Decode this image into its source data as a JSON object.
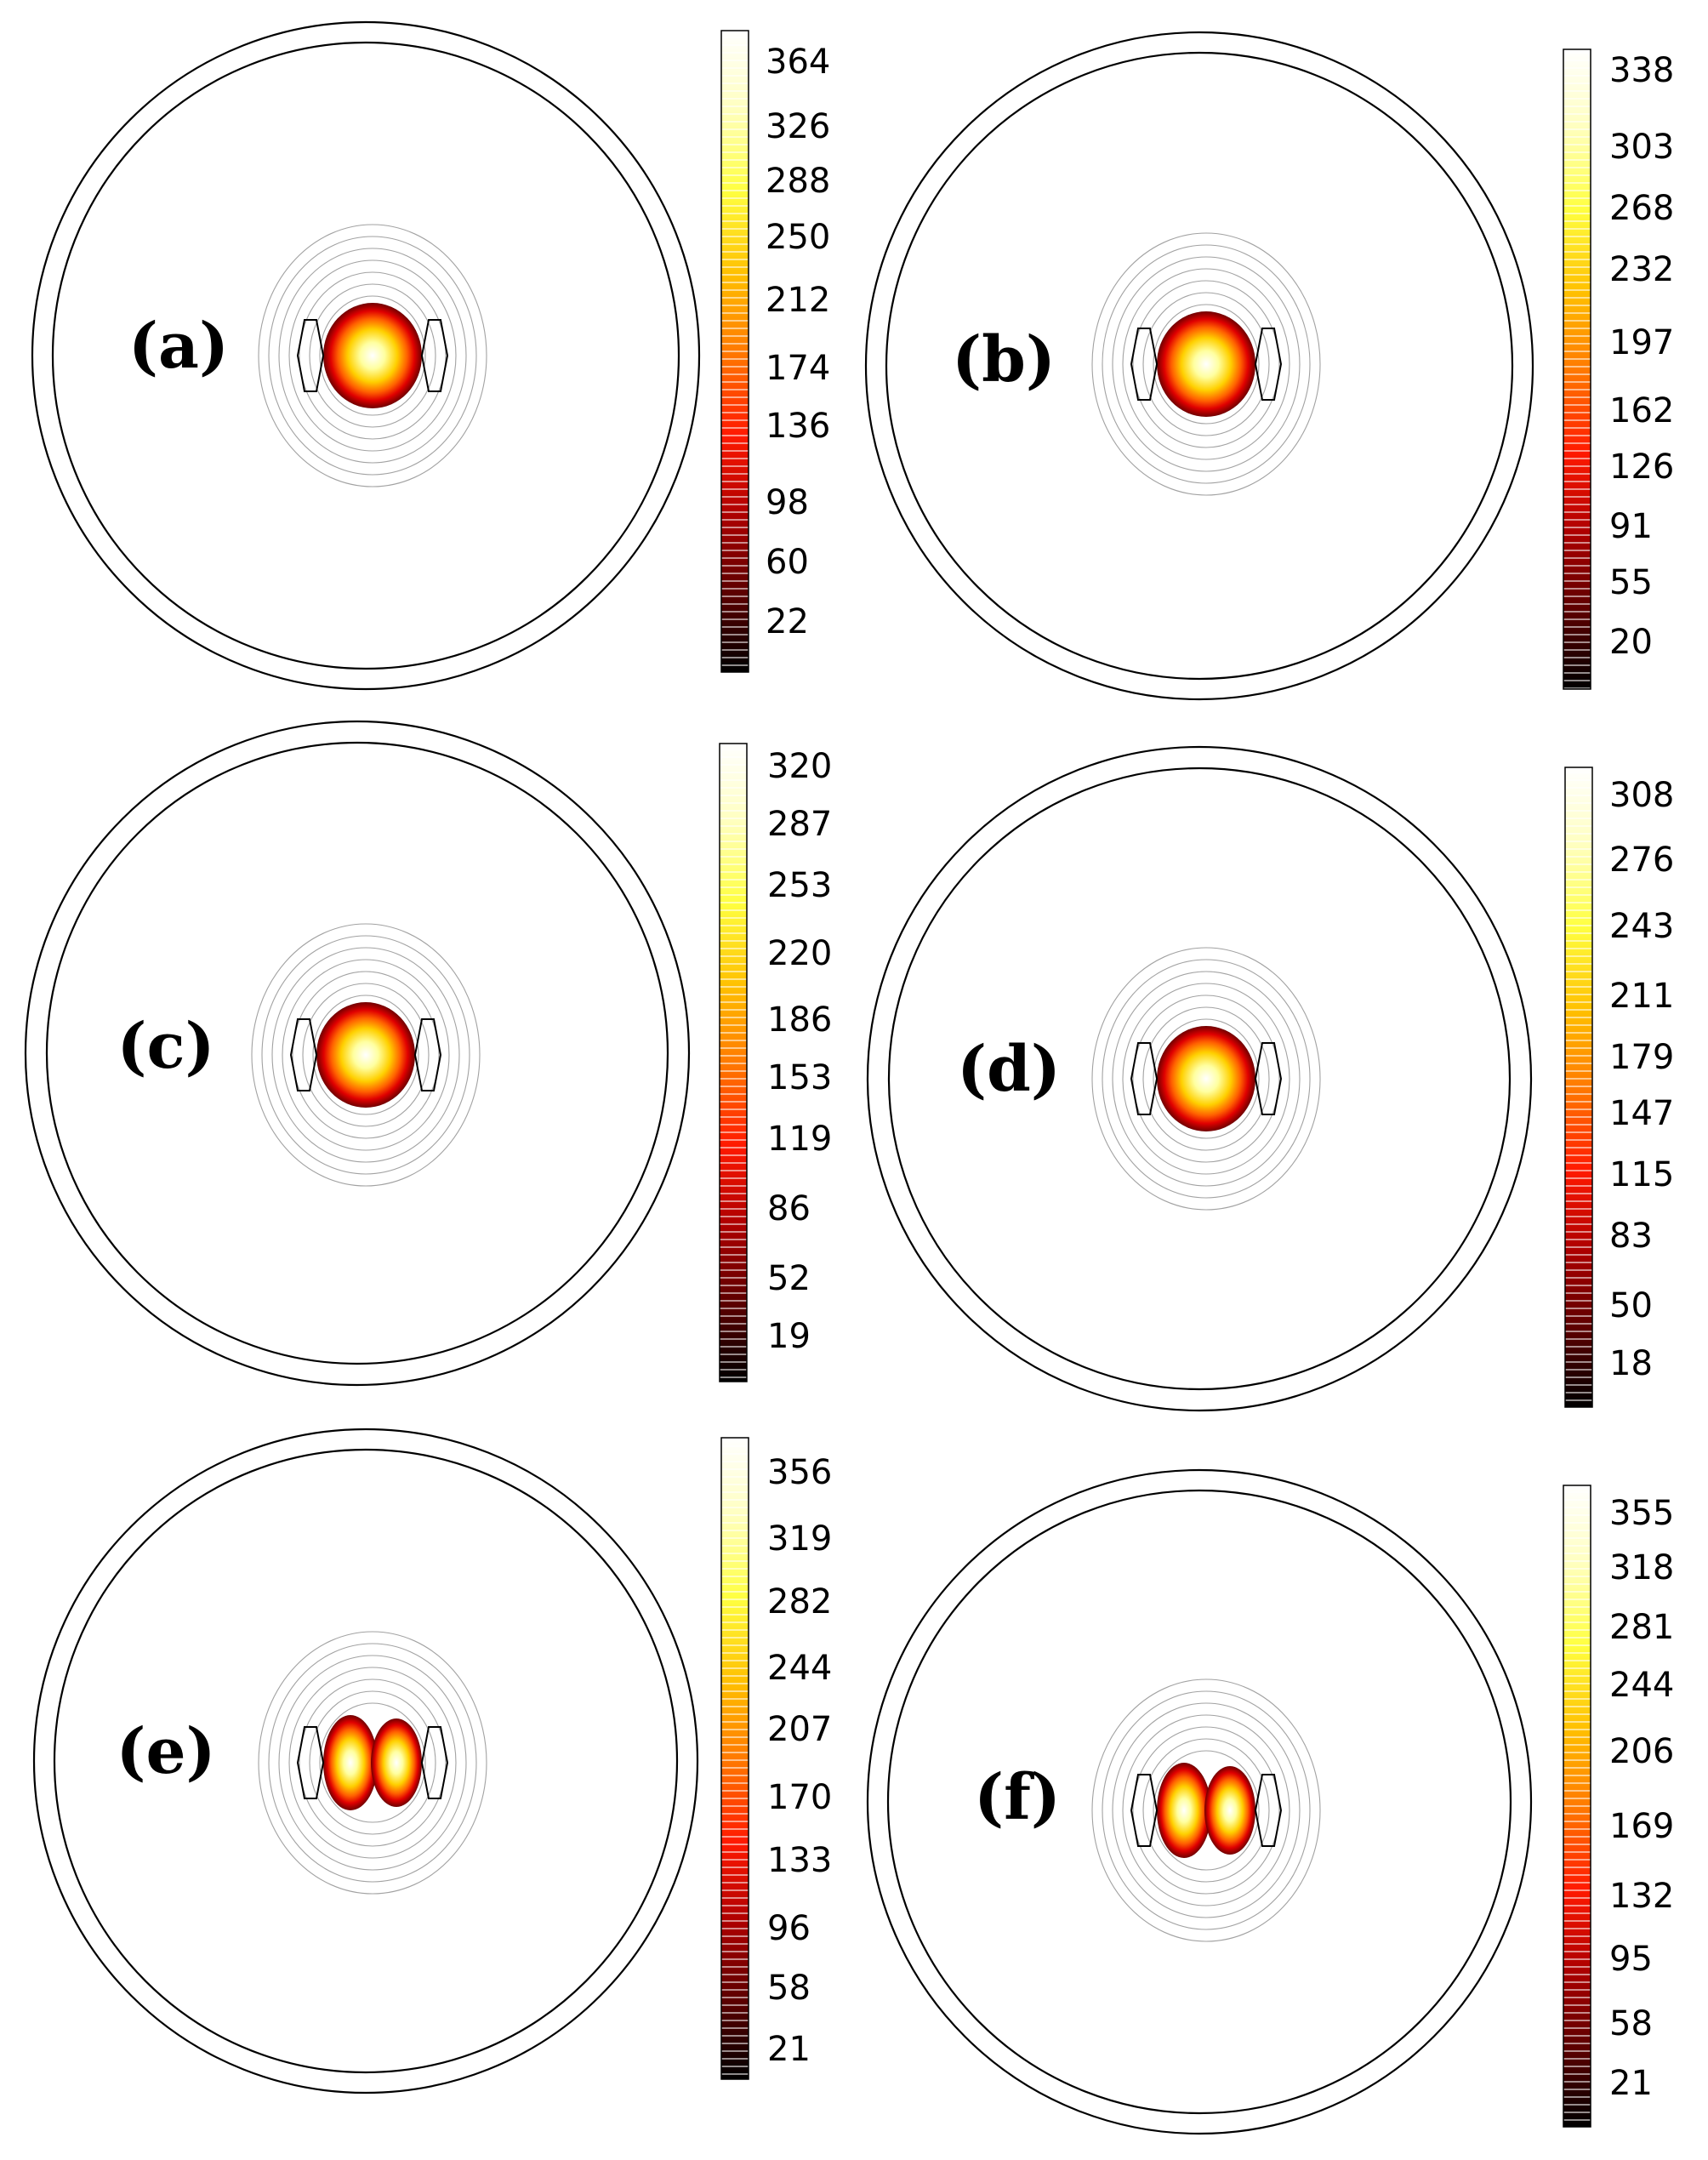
{
  "figure": {
    "panels": [
      {
        "label": "(a)",
        "colorbar_ticks": [
          "364",
          "326",
          "288",
          "250",
          "212",
          "174",
          "136",
          "98",
          "60",
          "22"
        ],
        "hot_shape": "single"
      },
      {
        "label": "(b)",
        "colorbar_ticks": [
          "338",
          "303",
          "268",
          "232",
          "197",
          "162",
          "126",
          "91",
          "55",
          "20"
        ],
        "hot_shape": "single"
      },
      {
        "label": "(c)",
        "colorbar_ticks": [
          "320",
          "287",
          "253",
          "220",
          "186",
          "153",
          "119",
          "86",
          "52",
          "19"
        ],
        "hot_shape": "single"
      },
      {
        "label": "(d)",
        "colorbar_ticks": [
          "308",
          "276",
          "243",
          "211",
          "179",
          "147",
          "115",
          "83",
          "50",
          "18"
        ],
        "hot_shape": "single"
      },
      {
        "label": "(e)",
        "colorbar_ticks": [
          "356",
          "319",
          "282",
          "244",
          "207",
          "170",
          "133",
          "96",
          "58",
          "21"
        ],
        "hot_shape": "double"
      },
      {
        "label": "(f)",
        "colorbar_ticks": [
          "355",
          "318",
          "281",
          "244",
          "206",
          "169",
          "132",
          "95",
          "58",
          "21"
        ],
        "hot_shape": "double"
      }
    ],
    "colormap": [
      "#000000",
      "#5a0000",
      "#b00000",
      "#ff1a00",
      "#ff7a00",
      "#ffc000",
      "#ffff40",
      "#ffffc0",
      "#ffffff"
    ]
  }
}
